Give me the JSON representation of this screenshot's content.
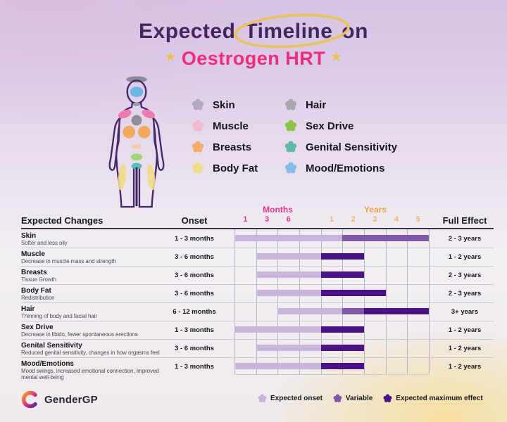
{
  "header": {
    "title_pre": "Expected",
    "title_circled": "Timeline",
    "title_post": "on",
    "subtitle": "Oestrogen HRT",
    "star": "★"
  },
  "body_map_legend": {
    "left": [
      {
        "label": "Skin",
        "color": "#b3a9c4"
      },
      {
        "label": "Muscle",
        "color": "#f3b9d2"
      },
      {
        "label": "Breasts",
        "color": "#f4ad69"
      },
      {
        "label": "Body Fat",
        "color": "#f1dd8a"
      }
    ],
    "right": [
      {
        "label": "Hair",
        "color": "#a7a7b0"
      },
      {
        "label": "Sex Drive",
        "color": "#8ec34a"
      },
      {
        "label": "Genital Sensitivity",
        "color": "#61b9ae"
      },
      {
        "label": "Mood/Emotions",
        "color": "#84bde9"
      }
    ]
  },
  "chart_data": {
    "type": "bar",
    "variant": "gantt-timeline",
    "title": "Expected Timeline on Oestrogen HRT",
    "column_headers": {
      "expected_changes": "Expected Changes",
      "onset": "Onset",
      "full_effect": "Full Effect"
    },
    "axis": {
      "months_label": "Months",
      "years_label": "Years",
      "month_ticks": [
        "1",
        "3",
        "6"
      ],
      "year_ticks": [
        "1",
        "2",
        "3",
        "4",
        "5"
      ],
      "columns": [
        "0-1 mo",
        "1-3 mo",
        "3-6 mo",
        "6-12 mo",
        "year 1",
        "year 2",
        "year 3",
        "year 4",
        "year 5"
      ]
    },
    "legend": [
      {
        "type": "onset",
        "label": "Expected onset",
        "color": "#c7b6da"
      },
      {
        "type": "variable",
        "label": "Variable",
        "color": "#8158a8"
      },
      {
        "type": "max",
        "label": "Expected maximum effect",
        "color": "#491285"
      }
    ],
    "rows": [
      {
        "name": "Skin",
        "desc": "Softer and less oily",
        "onset": "1 - 3 months",
        "full_effect": "2 - 3 years",
        "segments": [
          {
            "type": "onset",
            "from": 0,
            "to": 5
          },
          {
            "type": "variable",
            "from": 5,
            "to": 9
          }
        ]
      },
      {
        "name": "Muscle",
        "desc": "Decrease in muscle mass and strength",
        "onset": "3 - 6 months",
        "full_effect": "1 - 2 years",
        "segments": [
          {
            "type": "onset",
            "from": 1,
            "to": 4
          },
          {
            "type": "max",
            "from": 4,
            "to": 6
          }
        ]
      },
      {
        "name": "Breasts",
        "desc": "Tissue Growth",
        "onset": "3 - 6 months",
        "full_effect": "2 - 3 years",
        "segments": [
          {
            "type": "onset",
            "from": 1,
            "to": 4
          },
          {
            "type": "max",
            "from": 4,
            "to": 6
          }
        ]
      },
      {
        "name": "Body Fat",
        "desc": "Redistribution",
        "onset": "3 - 6 months",
        "full_effect": "2 - 3 years",
        "segments": [
          {
            "type": "onset",
            "from": 1,
            "to": 4
          },
          {
            "type": "max",
            "from": 4,
            "to": 7
          }
        ]
      },
      {
        "name": "Hair",
        "desc": "Thinning of body and facial hair",
        "onset": "6 - 12 months",
        "full_effect": "3+ years",
        "segments": [
          {
            "type": "onset",
            "from": 2,
            "to": 5
          },
          {
            "type": "variable",
            "from": 5,
            "to": 6
          },
          {
            "type": "max",
            "from": 6,
            "to": 9
          }
        ]
      },
      {
        "name": "Sex Drive",
        "desc": "Decrease in libido, fewer spontaneous erections",
        "onset": "1 - 3 months",
        "full_effect": "1 - 2 years",
        "segments": [
          {
            "type": "onset",
            "from": 0,
            "to": 4
          },
          {
            "type": "max",
            "from": 4,
            "to": 6
          }
        ]
      },
      {
        "name": "Genital Sensitivity",
        "desc": "Reduced genital sensitivity, changes in how orgasms feel",
        "onset": "3 - 6 months",
        "full_effect": "1 - 2 years",
        "segments": [
          {
            "type": "onset",
            "from": 1,
            "to": 4
          },
          {
            "type": "max",
            "from": 4,
            "to": 6
          }
        ]
      },
      {
        "name": "Mood/Emotions",
        "desc": "Mood swings, increased emotional connection, improved mental well-being",
        "onset": "1 - 3 months",
        "full_effect": "1 - 2 years",
        "segments": [
          {
            "type": "onset",
            "from": 0,
            "to": 4
          },
          {
            "type": "max",
            "from": 4,
            "to": 6
          }
        ]
      }
    ]
  },
  "footer": {
    "logo_text": "GenderGP"
  },
  "colors": {
    "title_purple": "#42265f",
    "subtitle_pink": "#ee2d7c",
    "gold": "#e9c35c",
    "months_pink": "#e8368f",
    "years_orange": "#eda34f",
    "year_tick": "#e9b466",
    "bar_onset": "#c7b6da",
    "bar_variable": "#8158a8",
    "bar_max": "#491285"
  }
}
